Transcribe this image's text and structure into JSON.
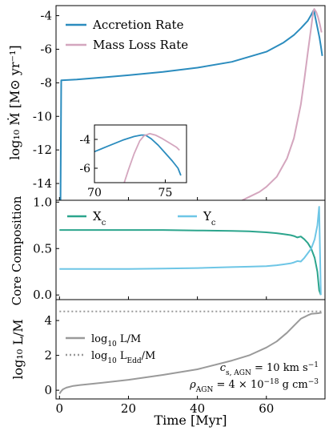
{
  "chart_data": [
    {
      "type": "line",
      "ylabel": "log₁₀ Ṁ [M⊙ yr⁻¹]",
      "xlim": [
        -1,
        77
      ],
      "ylim": [
        -15,
        -3.4
      ],
      "yticks": [
        "-4",
        "-6",
        "-8",
        "-10",
        "-12",
        "-14"
      ],
      "ytick_values": [
        -4,
        -6,
        -8,
        -10,
        -12,
        -14
      ],
      "legend_position": "top-left",
      "series": [
        {
          "name": "Accretion Rate",
          "color": "#2b8cbe",
          "x": [
            0,
            0.3,
            0.5,
            5,
            10,
            20,
            30,
            40,
            50,
            60,
            65,
            68,
            70,
            72,
            73,
            73.5,
            73.8,
            74.2,
            74.8,
            75.4,
            75.8,
            76.2
          ],
          "y": [
            -15,
            -15,
            -7.85,
            -7.8,
            -7.72,
            -7.55,
            -7.35,
            -7.1,
            -6.75,
            -6.15,
            -5.6,
            -5.15,
            -4.75,
            -4.3,
            -3.95,
            -3.75,
            -3.65,
            -4.1,
            -4.7,
            -5.3,
            -5.8,
            -6.4
          ]
        },
        {
          "name": "Mass Loss Rate",
          "color": "#d4a6be",
          "x": [
            53,
            55,
            58,
            60,
            63,
            66,
            68,
            70,
            71,
            72,
            72.8,
            73.3,
            73.6,
            73.9,
            74.5,
            75,
            75.5,
            76
          ],
          "y": [
            -15,
            -14.8,
            -14.5,
            -14.2,
            -13.6,
            -12.5,
            -11.3,
            -9.3,
            -7.8,
            -6.2,
            -5.0,
            -4.2,
            -3.75,
            -3.6,
            -3.8,
            -4.1,
            -4.5,
            -5.0
          ]
        }
      ]
    },
    {
      "type": "line",
      "subtype": "inset",
      "xlim": [
        70,
        76.5
      ],
      "ylim": [
        -7,
        -3
      ],
      "xticks": [
        "70",
        "75"
      ],
      "xtick_values": [
        70,
        75
      ],
      "yticks": [
        "-4",
        "-6"
      ],
      "ytick_values": [
        -4,
        -6
      ],
      "series": [
        {
          "name": "Accretion Rate",
          "color": "#2b8cbe",
          "x": [
            70,
            71,
            72,
            72.8,
            73.3,
            73.6,
            74,
            74.5,
            75,
            75.5,
            75.9,
            76.1
          ],
          "y": [
            -4.85,
            -4.45,
            -4.05,
            -3.8,
            -3.7,
            -3.7,
            -3.95,
            -4.4,
            -4.95,
            -5.5,
            -6.0,
            -6.5
          ]
        },
        {
          "name": "Mass Loss Rate",
          "color": "#d4a6be",
          "x": [
            72.1,
            72.4,
            72.8,
            73.2,
            73.5,
            73.9,
            74.3,
            74.8,
            75.3,
            75.8,
            76.0
          ],
          "y": [
            -7,
            -6.1,
            -5.0,
            -4.1,
            -3.75,
            -3.6,
            -3.7,
            -3.95,
            -4.25,
            -4.55,
            -4.75
          ]
        }
      ]
    },
    {
      "type": "line",
      "ylabel": "Core Composition",
      "xlim": [
        -1,
        77
      ],
      "ylim": [
        -0.05,
        1.02
      ],
      "yticks": [
        "0.0",
        "0.5",
        "1.0"
      ],
      "ytick_values": [
        0,
        0.5,
        1
      ],
      "legend_position": "top",
      "series": [
        {
          "name": "Xc",
          "color": "#2ca58d",
          "x": [
            0,
            10,
            20,
            30,
            40,
            50,
            55,
            60,
            63,
            65,
            67,
            68,
            69,
            70,
            71,
            72,
            73,
            74,
            74.8,
            75.3,
            75.8
          ],
          "y": [
            0.7,
            0.7,
            0.7,
            0.7,
            0.695,
            0.69,
            0.685,
            0.675,
            0.665,
            0.655,
            0.645,
            0.635,
            0.62,
            0.63,
            0.6,
            0.56,
            0.5,
            0.4,
            0.25,
            0.05,
            0.0
          ]
        },
        {
          "name": "Yc",
          "color": "#6ec6e6",
          "x": [
            0,
            10,
            20,
            30,
            40,
            50,
            55,
            60,
            63,
            65,
            67,
            68,
            69,
            70,
            71,
            72,
            73,
            74,
            74.8,
            75.3,
            75.8
          ],
          "y": [
            0.28,
            0.28,
            0.28,
            0.285,
            0.29,
            0.3,
            0.305,
            0.31,
            0.32,
            0.33,
            0.34,
            0.35,
            0.365,
            0.36,
            0.4,
            0.45,
            0.5,
            0.6,
            0.75,
            0.95,
            0.0
          ]
        }
      ]
    },
    {
      "type": "line",
      "ylabel": "log₁₀ L/M",
      "xlabel": "Time [Myr]",
      "xlim": [
        -1,
        77
      ],
      "ylim": [
        -0.5,
        5.2
      ],
      "xticks": [
        "0",
        "20",
        "40",
        "60"
      ],
      "xtick_values": [
        0,
        20,
        40,
        60
      ],
      "yticks": [
        "0",
        "2",
        "4"
      ],
      "ytick_values": [
        0,
        2,
        4
      ],
      "legend_position": "bottom-left",
      "series": [
        {
          "name": "log₁₀ L/M",
          "color": "#9a9a9a",
          "style": "solid",
          "x": [
            0,
            0.5,
            1,
            2,
            4,
            6,
            10,
            20,
            30,
            40,
            50,
            55,
            60,
            63,
            66,
            68,
            70,
            72,
            73,
            74,
            75,
            76
          ],
          "y": [
            -0.2,
            -0.05,
            0.05,
            0.15,
            0.25,
            0.3,
            0.38,
            0.6,
            0.88,
            1.2,
            1.7,
            2.0,
            2.45,
            2.8,
            3.3,
            3.7,
            4.1,
            4.3,
            4.38,
            4.4,
            4.42,
            4.45
          ]
        },
        {
          "name": "log₁₀ LEdd/M",
          "color": "#9a9a9a",
          "style": "dotted",
          "x": [
            0,
            76
          ],
          "y": [
            4.52,
            4.52
          ]
        }
      ],
      "annotations": [
        {
          "prefix": "c",
          "sub": "s, AGN",
          "text": " = 10 km s",
          "sup": "−1"
        },
        {
          "prefix": "ρ",
          "sub": "AGN",
          "text": " = 4 × 10",
          "sup": "−18",
          "suffix": " g cm",
          "sup2": "−3"
        }
      ]
    }
  ]
}
